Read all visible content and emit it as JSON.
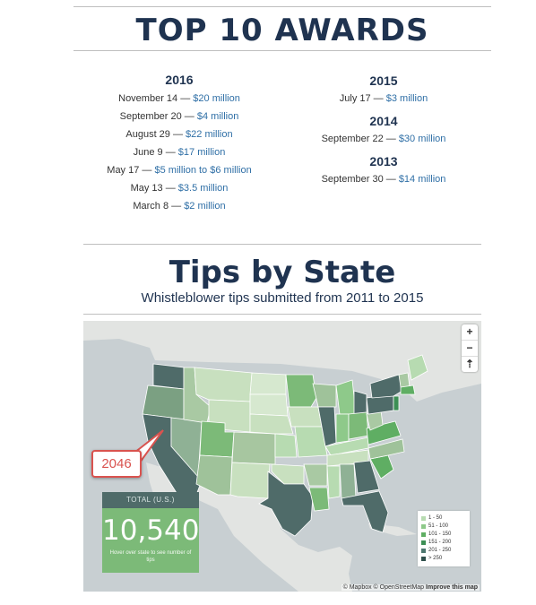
{
  "awards": {
    "title": "TOP 10 AWARDS",
    "left_column": {
      "year": "2016",
      "items": [
        {
          "date": "November 14 —",
          "amount": "$20 million"
        },
        {
          "date": "September 20 —",
          "amount": "$4 million"
        },
        {
          "date": "August 29 —",
          "amount": "$22 million"
        },
        {
          "date": "June 9 —",
          "amount": "$17 million"
        },
        {
          "date": "May 17 —",
          "amount": "$5 million to $6 million"
        },
        {
          "date": "May 13 —",
          "amount": "$3.5 million"
        },
        {
          "date": "March 8 —",
          "amount": "$2 million"
        }
      ]
    },
    "right_column": [
      {
        "year": "2015",
        "items": [
          {
            "date": "July 17 —",
            "amount": "$3 million"
          }
        ]
      },
      {
        "year": "2014",
        "items": [
          {
            "date": "September 22 —",
            "amount": "$30 million"
          }
        ]
      },
      {
        "year": "2013",
        "items": [
          {
            "date": "September 30 —",
            "amount": "$14 million"
          }
        ]
      }
    ],
    "amount_color": "#2f6fa6",
    "title_color": "#1f3350"
  },
  "tips": {
    "title": "Tips by State",
    "subtitle": "Whistleblower tips submitted from 2011 to 2015"
  },
  "map": {
    "zoom_in": "+",
    "zoom_out": "−",
    "compass": "⇡",
    "total_label": "TOTAL (U.S.)",
    "total_value": "10,540",
    "total_hint": "Hover over state to see number of tips",
    "callout_value": "2046",
    "legend": [
      {
        "label": "1 - 50",
        "color": "#b7dbb1"
      },
      {
        "label": "51 - 100",
        "color": "#8ec98a"
      },
      {
        "label": "101 - 150",
        "color": "#5fae63"
      },
      {
        "label": "151 - 200",
        "color": "#3d8f55"
      },
      {
        "label": "201 - 250",
        "color": "#4d7770"
      },
      {
        "label": "> 250",
        "color": "#2f4f4c"
      }
    ],
    "attribution": "© Mapbox © OpenStreetMap",
    "improve_link": "Improve this map"
  }
}
